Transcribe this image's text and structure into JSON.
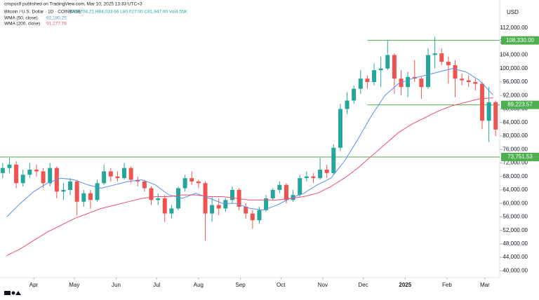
{
  "chart_data": {
    "type": "candlestick",
    "publisher": "crispus9 published on TradingView.com, Mar 10, 2025 13:33 UTC+3",
    "title": "Bitcoin / U.S. Dollar · 1D · COINBASE",
    "ohlc_text": "O80,708.21 H84,033.66 L80,027.00 C81,947.00 Vol4.55K",
    "y_unit": "USD",
    "up_color": "#26a69a",
    "down_color": "#ef5350",
    "xlim": [
      0,
      370
    ],
    "xticks": [
      {
        "value": 25,
        "label": "Apr"
      },
      {
        "value": 55,
        "label": "May"
      },
      {
        "value": 86,
        "label": "Jun"
      },
      {
        "value": 116,
        "label": "Jul"
      },
      {
        "value": 147,
        "label": "Aug"
      },
      {
        "value": 178,
        "label": "Sep"
      },
      {
        "value": 208,
        "label": "Oct"
      },
      {
        "value": 239,
        "label": "Nov"
      },
      {
        "value": 269,
        "label": "Dec"
      },
      {
        "value": 300,
        "label": "2025"
      },
      {
        "value": 331,
        "label": "Feb"
      },
      {
        "value": 359,
        "label": "Mar"
      }
    ],
    "ylim": [
      38000,
      114500
    ],
    "yticks": [
      {
        "value": 40000,
        "label": "40,000.00"
      },
      {
        "value": 44000,
        "label": "44,000.00"
      },
      {
        "value": 48000,
        "label": "48,000.00"
      },
      {
        "value": 52000,
        "label": "52,000.00"
      },
      {
        "value": 56000,
        "label": "56,000.00"
      },
      {
        "value": 60000,
        "label": "60,000.00"
      },
      {
        "value": 64000,
        "label": "64,000.00"
      },
      {
        "value": 68000,
        "label": "68,000.00"
      },
      {
        "value": 72000,
        "label": "72,000.00"
      },
      {
        "value": 76000,
        "label": "76,000.00"
      },
      {
        "value": 80000,
        "label": "80,000.00"
      },
      {
        "value": 84000,
        "label": "84,000.00"
      },
      {
        "value": 88000,
        "label": "88,000.00"
      },
      {
        "value": 92000,
        "label": "92,000.00"
      },
      {
        "value": 96000,
        "label": "96,000.00"
      },
      {
        "value": 100000,
        "label": "100,000.00"
      },
      {
        "value": 104000,
        "label": "104,000.00"
      },
      {
        "value": 108000,
        "label": "108,000.00"
      },
      {
        "value": 112000,
        "label": "112,000.00"
      }
    ],
    "x": [
      2,
      7,
      12,
      17,
      22,
      27,
      32,
      37,
      42,
      47,
      52,
      57,
      62,
      67,
      72,
      77,
      82,
      87,
      92,
      97,
      102,
      107,
      112,
      117,
      122,
      127,
      132,
      137,
      142,
      147,
      152,
      157,
      162,
      167,
      172,
      177,
      182,
      187,
      192,
      197,
      202,
      207,
      212,
      217,
      222,
      227,
      232,
      237,
      242,
      247,
      252,
      257,
      262,
      267,
      272,
      277,
      282,
      287,
      292,
      297,
      302,
      307,
      312,
      317,
      322,
      327,
      332,
      337,
      342,
      347,
      352,
      357,
      362,
      367
    ],
    "open": [
      69000,
      70500,
      71500,
      66000,
      68500,
      70000,
      69500,
      66000,
      70500,
      63500,
      64000,
      66500,
      60500,
      63000,
      61000,
      66000,
      69500,
      68000,
      67500,
      70500,
      67000,
      66500,
      64500,
      61000,
      61500,
      57000,
      58500,
      64500,
      67500,
      66500,
      66000,
      57000,
      59500,
      58500,
      61000,
      64000,
      59000,
      57000,
      55000,
      58000,
      61500,
      64000,
      65500,
      61000,
      62500,
      67500,
      68000,
      67500,
      70000,
      69000,
      76500,
      88000,
      90500,
      94000,
      97000,
      96000,
      99500,
      100000,
      104000,
      97000,
      94500,
      97500,
      97000,
      94500,
      104000,
      104500,
      102000,
      101000,
      97000,
      96500,
      96000,
      95500,
      84500,
      90000
    ],
    "high": [
      72000,
      73500,
      72500,
      70000,
      72000,
      71500,
      70500,
      72000,
      71000,
      66000,
      67500,
      67000,
      64000,
      64000,
      67000,
      71500,
      70500,
      69500,
      72000,
      71000,
      68000,
      67000,
      65000,
      63000,
      62500,
      59500,
      65000,
      68500,
      69500,
      67000,
      66500,
      62000,
      61500,
      61500,
      65000,
      64500,
      60000,
      58000,
      59000,
      62500,
      64500,
      66500,
      66000,
      64000,
      68500,
      69500,
      69000,
      73500,
      71500,
      77500,
      89500,
      93000,
      95000,
      99500,
      98000,
      101500,
      103500,
      108300,
      104500,
      99500,
      99000,
      102500,
      97500,
      106000,
      109400,
      106000,
      103500,
      102500,
      98500,
      98000,
      97000,
      96000,
      94500,
      90500
    ],
    "low": [
      67500,
      69000,
      64500,
      65000,
      67500,
      68000,
      64500,
      65000,
      61500,
      61000,
      62500,
      56500,
      59000,
      58500,
      60500,
      65500,
      66500,
      66500,
      67000,
      66000,
      65000,
      63500,
      59500,
      59500,
      54500,
      55500,
      58000,
      63500,
      65500,
      64500,
      49000,
      54500,
      56500,
      57500,
      60000,
      58000,
      55500,
      52500,
      54000,
      57500,
      61000,
      63000,
      60000,
      60500,
      62000,
      66500,
      66000,
      67000,
      67500,
      68500,
      75500,
      86500,
      89500,
      92500,
      94000,
      95000,
      94500,
      99500,
      92500,
      92000,
      91500,
      96000,
      91000,
      94000,
      100000,
      101000,
      95500,
      91500,
      95000,
      94500,
      93500,
      82000,
      78200,
      80000
    ],
    "close": [
      70500,
      71500,
      66000,
      68500,
      70000,
      69500,
      66000,
      70500,
      63500,
      64000,
      66500,
      60500,
      63000,
      61000,
      66000,
      69500,
      68000,
      67500,
      70500,
      67000,
      66500,
      64500,
      61000,
      61500,
      57000,
      58500,
      64500,
      67500,
      66500,
      66000,
      57000,
      59500,
      58500,
      61000,
      64000,
      59000,
      57000,
      55000,
      58000,
      61500,
      64000,
      65500,
      61000,
      62500,
      67500,
      68000,
      67500,
      70000,
      69000,
      76500,
      88000,
      90500,
      94000,
      97000,
      96000,
      99500,
      100000,
      104000,
      97000,
      94500,
      97500,
      97000,
      94500,
      104000,
      104500,
      102000,
      101000,
      97000,
      96500,
      96000,
      95500,
      84500,
      90000,
      81900
    ],
    "lines": [
      {
        "name": "WMA (50, close)",
        "legend_value": "92,180.25",
        "color": "#5b8def",
        "x": [
          5,
          15,
          25,
          35,
          45,
          55,
          65,
          75,
          85,
          95,
          105,
          115,
          125,
          135,
          145,
          155,
          165,
          175,
          185,
          195,
          205,
          215,
          225,
          235,
          245,
          255,
          265,
          275,
          285,
          295,
          305,
          315,
          325,
          335,
          345,
          355,
          365
        ],
        "values": [
          56000,
          60000,
          63500,
          66000,
          67500,
          67000,
          65500,
          64500,
          65500,
          66500,
          67000,
          65500,
          62500,
          61500,
          63000,
          61500,
          60000,
          60000,
          58500,
          58000,
          59500,
          61500,
          63000,
          65500,
          67500,
          72500,
          79000,
          86000,
          92000,
          95500,
          97000,
          98000,
          99000,
          100000,
          99000,
          96500,
          92200
        ]
      },
      {
        "name": "WMA (200, close)",
        "legend_value": "91,277.76",
        "color": "#f0506e",
        "x": [
          5,
          15,
          25,
          35,
          45,
          55,
          65,
          75,
          85,
          95,
          105,
          115,
          125,
          135,
          145,
          155,
          165,
          175,
          185,
          195,
          205,
          215,
          225,
          235,
          245,
          255,
          265,
          275,
          285,
          295,
          305,
          315,
          325,
          335,
          345,
          355,
          365
        ],
        "values": [
          44500,
          46500,
          49000,
          51500,
          53500,
          55500,
          57000,
          58500,
          59500,
          60500,
          61500,
          62000,
          62000,
          62500,
          62500,
          62000,
          62000,
          61500,
          61000,
          61000,
          61000,
          61500,
          62000,
          63000,
          65000,
          67500,
          70500,
          74000,
          77500,
          81000,
          83500,
          85500,
          87500,
          89000,
          90000,
          91000,
          91300
        ]
      }
    ],
    "levels": [
      {
        "value": 108330,
        "label": "108,330.00",
        "x_from": 272,
        "color": "#4caf50"
      },
      {
        "value": 89223.57,
        "label": "89,223.57",
        "x_from": 272,
        "color": "#4caf50"
      },
      {
        "value": 73751.53,
        "label": "73,751.53",
        "x_from": 0,
        "color": "#4caf50"
      }
    ]
  }
}
